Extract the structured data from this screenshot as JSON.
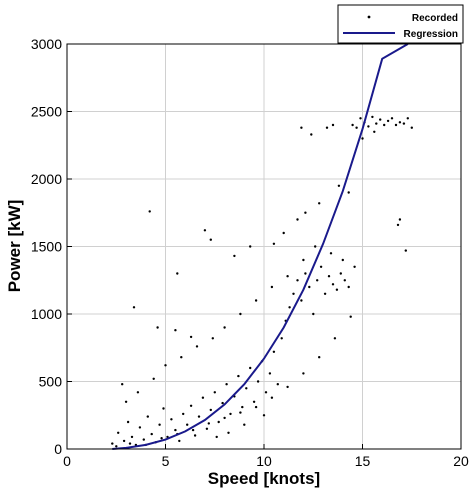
{
  "chart_data": {
    "type": "scatter",
    "xlabel": "Speed [knots]",
    "ylabel": "Power [kW]",
    "xlim": [
      0,
      20
    ],
    "ylim": [
      0,
      3000
    ],
    "xticks": [
      0,
      5,
      10,
      15,
      20
    ],
    "yticks": [
      0,
      500,
      1000,
      1500,
      2000,
      2500,
      3000
    ],
    "grid": true,
    "legend_position": "top-right",
    "series": [
      {
        "name": "Recorded",
        "kind": "scatter",
        "color": "#000000",
        "points": [
          [
            2.3,
            40
          ],
          [
            2.6,
            120
          ],
          [
            2.9,
            60
          ],
          [
            3.1,
            200
          ],
          [
            3.3,
            90
          ],
          [
            3.5,
            30
          ],
          [
            3.7,
            160
          ],
          [
            3.9,
            70
          ],
          [
            4.1,
            240
          ],
          [
            4.3,
            110
          ],
          [
            4.5,
            50
          ],
          [
            4.7,
            180
          ],
          [
            4.9,
            300
          ],
          [
            5.1,
            90
          ],
          [
            5.3,
            220
          ],
          [
            5.5,
            140
          ],
          [
            5.7,
            60
          ],
          [
            5.9,
            260
          ],
          [
            6.1,
            180
          ],
          [
            6.3,
            320
          ],
          [
            6.5,
            100
          ],
          [
            6.7,
            240
          ],
          [
            6.9,
            380
          ],
          [
            7.1,
            150
          ],
          [
            7.3,
            290
          ],
          [
            7.5,
            420
          ],
          [
            7.7,
            200
          ],
          [
            7.9,
            340
          ],
          [
            8.1,
            480
          ],
          [
            8.3,
            260
          ],
          [
            8.5,
            390
          ],
          [
            8.7,
            540
          ],
          [
            8.9,
            310
          ],
          [
            9.1,
            450
          ],
          [
            9.3,
            600
          ],
          [
            9.5,
            350
          ],
          [
            9.7,
            500
          ],
          [
            9.9,
            650
          ],
          [
            10.1,
            420
          ],
          [
            10.3,
            560
          ],
          [
            10.5,
            720
          ],
          [
            10.7,
            480
          ],
          [
            10.9,
            820
          ],
          [
            11.1,
            950
          ],
          [
            11.3,
            1050
          ],
          [
            11.5,
            1150
          ],
          [
            11.7,
            1250
          ],
          [
            11.9,
            1100
          ],
          [
            12.1,
            1300
          ],
          [
            12.3,
            1200
          ],
          [
            12.5,
            1000
          ],
          [
            12.7,
            1250
          ],
          [
            12.9,
            1350
          ],
          [
            13.1,
            1150
          ],
          [
            13.3,
            1280
          ],
          [
            13.5,
            1220
          ],
          [
            13.7,
            1180
          ],
          [
            13.9,
            1300
          ],
          [
            14.1,
            1250
          ],
          [
            14.3,
            1200
          ],
          [
            14.5,
            2400
          ],
          [
            14.7,
            2380
          ],
          [
            14.9,
            2450
          ],
          [
            15.1,
            2420
          ],
          [
            15.3,
            2390
          ],
          [
            15.5,
            2460
          ],
          [
            15.7,
            2410
          ],
          [
            15.9,
            2440
          ],
          [
            16.1,
            2400
          ],
          [
            16.3,
            2430
          ],
          [
            16.5,
            2450
          ],
          [
            16.7,
            2400
          ],
          [
            16.9,
            2420
          ],
          [
            17.1,
            2410
          ],
          [
            17.3,
            2450
          ],
          [
            17.5,
            2380
          ],
          [
            13.2,
            2380
          ],
          [
            13.5,
            2400
          ],
          [
            12.4,
            2330
          ],
          [
            11.9,
            2380
          ],
          [
            4.2,
            1760
          ],
          [
            5.6,
            1300
          ],
          [
            7.0,
            1620
          ],
          [
            7.3,
            1550
          ],
          [
            8.5,
            1430
          ],
          [
            9.3,
            1500
          ],
          [
            11.7,
            1700
          ],
          [
            12.1,
            1750
          ],
          [
            12.8,
            1820
          ],
          [
            13.8,
            1950
          ],
          [
            16.8,
            1660
          ],
          [
            16.9,
            1700
          ],
          [
            17.2,
            1470
          ],
          [
            4.6,
            900
          ],
          [
            3.4,
            1050
          ],
          [
            5.5,
            880
          ],
          [
            6.3,
            830
          ],
          [
            10.5,
            1520
          ],
          [
            11.0,
            1600
          ],
          [
            14.3,
            1900
          ],
          [
            2.8,
            480
          ],
          [
            3.0,
            350
          ],
          [
            3.6,
            420
          ],
          [
            4.4,
            520
          ],
          [
            5.0,
            620
          ],
          [
            5.8,
            680
          ],
          [
            6.6,
            760
          ],
          [
            7.4,
            820
          ],
          [
            8.0,
            900
          ],
          [
            8.8,
            1000
          ],
          [
            9.6,
            1100
          ],
          [
            10.4,
            1200
          ],
          [
            11.2,
            1280
          ],
          [
            12.0,
            1400
          ],
          [
            12.6,
            1500
          ],
          [
            13.4,
            1450
          ],
          [
            14.0,
            1400
          ],
          [
            14.6,
            1350
          ],
          [
            15.0,
            2300
          ],
          [
            15.6,
            2350
          ],
          [
            2.5,
            20
          ],
          [
            3.2,
            40
          ],
          [
            4.0,
            30
          ],
          [
            4.8,
            80
          ],
          [
            5.6,
            110
          ],
          [
            6.4,
            140
          ],
          [
            7.2,
            190
          ],
          [
            8.0,
            230
          ],
          [
            8.8,
            270
          ],
          [
            9.6,
            310
          ],
          [
            10.4,
            380
          ],
          [
            11.2,
            460
          ],
          [
            12.0,
            560
          ],
          [
            12.8,
            680
          ],
          [
            13.6,
            820
          ],
          [
            14.4,
            980
          ],
          [
            10.0,
            250
          ],
          [
            9.0,
            180
          ],
          [
            8.2,
            120
          ],
          [
            7.6,
            90
          ]
        ]
      },
      {
        "name": "Regression",
        "kind": "line",
        "color": "#1a1a8c",
        "x": [
          2.3,
          3,
          4,
          5,
          6,
          7,
          8,
          9,
          10,
          11,
          12,
          13,
          14,
          15,
          16,
          17.3
        ],
        "y": [
          0,
          8,
          30,
          70,
          130,
          215,
          330,
          480,
          670,
          900,
          1180,
          1520,
          1910,
          2370,
          2890,
          3000
        ]
      }
    ]
  }
}
